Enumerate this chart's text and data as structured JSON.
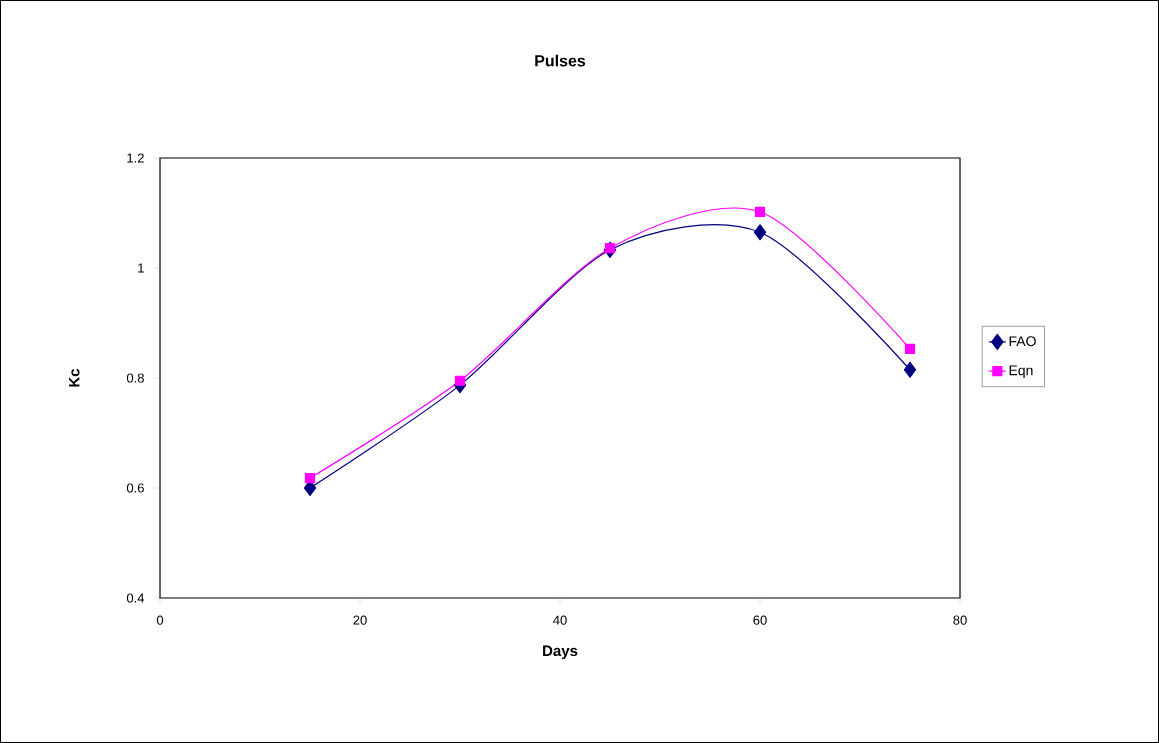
{
  "chart_data": {
    "type": "line",
    "title": "Pulses",
    "xlabel": "Days",
    "ylabel": "Kc",
    "x": [
      15,
      30,
      45,
      60,
      75
    ],
    "series": [
      {
        "name": "FAO",
        "color": "#000080",
        "marker": "diamond",
        "values": [
          0.6,
          0.787,
          1.033,
          1.065,
          0.815
        ]
      },
      {
        "name": "Eqn",
        "color": "#ff00ff",
        "marker": "square",
        "values": [
          0.618,
          0.795,
          1.036,
          1.102,
          0.853
        ]
      }
    ],
    "xlim": [
      0,
      80
    ],
    "ylim": [
      0.4,
      1.2
    ],
    "xticks": [
      0,
      20,
      40,
      60,
      80
    ],
    "yticks": [
      0.4,
      0.6,
      0.8,
      1,
      1.2
    ],
    "legend": "right",
    "grid": false
  }
}
